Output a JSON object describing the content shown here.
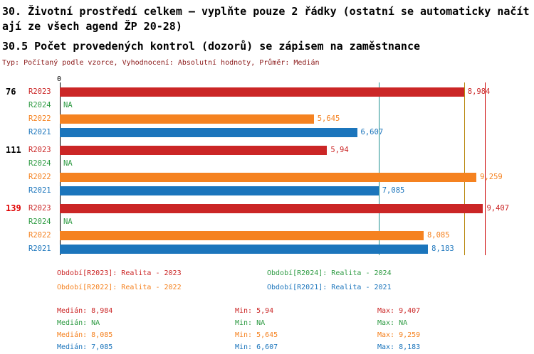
{
  "header": {
    "title_line1": "30. Životní prostředí celkem – vyplňte pouze 2 řádky (ostatní se automaticky načítají ze všech agend ŽP 20-28)",
    "title_line2": "30.5 Počet provedených kontrol (dozorů) se zápisem na zaměstnance",
    "meta": "Typ: Počítaný podle vzorce, Vyhodnocení: Absolutní hodnoty, Průměr: Medián"
  },
  "chart_data": {
    "type": "bar",
    "orientation": "horizontal",
    "title": "30.5 Počet provedených kontrol (dozorů) se zápisem na zaměstnance",
    "axis_zero_label": "0",
    "xlim": [
      0,
      9.7
    ],
    "grid": false,
    "series_order": [
      "R2023",
      "R2024",
      "R2022",
      "R2021"
    ],
    "series_colors": {
      "R2023": "#cb2626",
      "R2024": "#2e9b43",
      "R2022": "#f58220",
      "R2021": "#1b75bc"
    },
    "groups": [
      {
        "id": "76",
        "id_color": "#000000",
        "rows": [
          {
            "series": "R2023",
            "value": 8.984,
            "label": "8,984"
          },
          {
            "series": "R2024",
            "value": null,
            "label": "NA"
          },
          {
            "series": "R2022",
            "value": 5.645,
            "label": "5,645"
          },
          {
            "series": "R2021",
            "value": 6.607,
            "label": "6,607"
          }
        ]
      },
      {
        "id": "111",
        "id_color": "#000000",
        "rows": [
          {
            "series": "R2023",
            "value": 5.94,
            "label": "5,94"
          },
          {
            "series": "R2024",
            "value": null,
            "label": "NA"
          },
          {
            "series": "R2022",
            "value": 9.259,
            "label": "9,259"
          },
          {
            "series": "R2021",
            "value": 7.085,
            "label": "7,085"
          }
        ]
      },
      {
        "id": "139",
        "id_color": "#e00000",
        "rows": [
          {
            "series": "R2023",
            "value": 9.407,
            "label": "9,407"
          },
          {
            "series": "R2024",
            "value": null,
            "label": "NA"
          },
          {
            "series": "R2022",
            "value": 8.085,
            "label": "8,085"
          },
          {
            "series": "R2021",
            "value": 8.183,
            "label": "8,183"
          }
        ]
      }
    ],
    "reference_lines": [
      {
        "value": 7.085,
        "color": "#1d8f8f"
      },
      {
        "value": 8.984,
        "color": "#b8860b"
      },
      {
        "value": 9.45,
        "color": "#cc0000"
      }
    ],
    "stats_numeric": {
      "R2023": {
        "median": 8.984,
        "min": 5.94,
        "max": 9.407
      },
      "R2024": {
        "median": null,
        "min": null,
        "max": null
      },
      "R2022": {
        "median": 8.085,
        "min": 5.645,
        "max": 9.259
      },
      "R2021": {
        "median": 7.085,
        "min": 6.607,
        "max": 8.183
      }
    }
  },
  "legend": {
    "items": [
      {
        "series": "R2023",
        "label": "Období[R2023]: Realita - 2023"
      },
      {
        "series": "R2024",
        "label": "Období[R2024]: Realita - 2024"
      },
      {
        "series": "R2022",
        "label": "Období[R2022]: Realita - 2022"
      },
      {
        "series": "R2021",
        "label": "Období[R2021]: Realita - 2021"
      }
    ]
  },
  "stats": {
    "rows": [
      {
        "series": "R2023",
        "median": "Medián: 8,984",
        "min": "Min: 5,94",
        "max": "Max: 9,407"
      },
      {
        "series": "R2024",
        "median": "Medián: NA",
        "min": "Min: NA",
        "max": "Max: NA"
      },
      {
        "series": "R2022",
        "median": "Medián: 8,085",
        "min": "Min: 5,645",
        "max": "Max: 9,259"
      },
      {
        "series": "R2021",
        "median": "Medián: 7,085",
        "min": "Min: 6,607",
        "max": "Max: 8,183"
      }
    ]
  },
  "colors": {
    "meta_text": "#8b1a1a",
    "axis": "#000000"
  }
}
